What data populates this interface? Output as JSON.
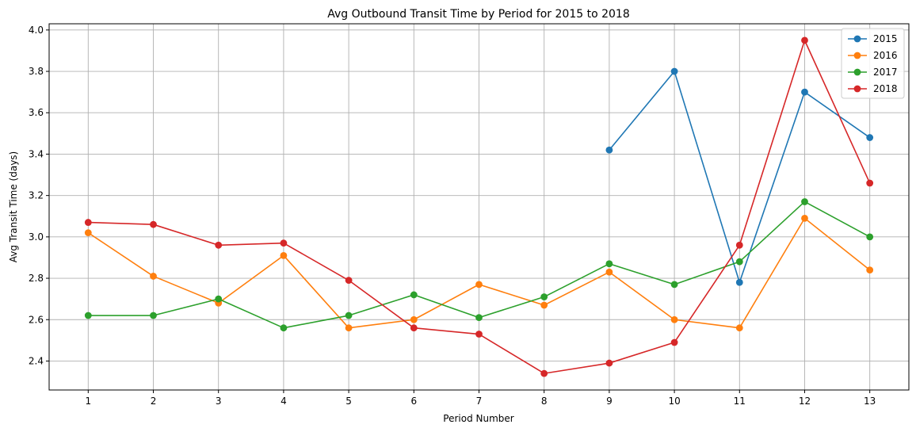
{
  "chart_data": {
    "type": "line",
    "title": "Avg Outbound Transit Time by Period for 2015 to 2018",
    "xlabel": "Period Number",
    "ylabel": "Avg Transit Time (days)",
    "x": [
      1,
      2,
      3,
      4,
      5,
      6,
      7,
      8,
      9,
      10,
      11,
      12,
      13
    ],
    "x_ticks": [
      "1",
      "2",
      "3",
      "4",
      "5",
      "6",
      "7",
      "8",
      "9",
      "10",
      "11",
      "12",
      "13"
    ],
    "y_ticks": [
      "2.4",
      "2.6",
      "2.8",
      "3.0",
      "3.2",
      "3.4",
      "3.6",
      "3.8",
      "4.0"
    ],
    "xlim": [
      0.4,
      13.6
    ],
    "ylim": [
      2.26,
      4.03
    ],
    "grid": true,
    "legend_position": "top-right",
    "series": [
      {
        "name": "2015",
        "color": "#1f77b4",
        "values": [
          null,
          null,
          null,
          null,
          null,
          null,
          null,
          null,
          3.42,
          3.8,
          2.78,
          3.7,
          3.48
        ]
      },
      {
        "name": "2016",
        "color": "#ff7f0e",
        "values": [
          3.02,
          2.81,
          2.68,
          2.91,
          2.56,
          2.6,
          2.77,
          2.67,
          2.83,
          2.6,
          2.56,
          3.09,
          2.84
        ]
      },
      {
        "name": "2017",
        "color": "#2ca02c",
        "values": [
          2.62,
          2.62,
          2.7,
          2.56,
          2.62,
          2.72,
          2.61,
          2.71,
          2.87,
          2.77,
          2.88,
          3.17,
          3.0
        ]
      },
      {
        "name": "2018",
        "color": "#d62728",
        "values": [
          3.07,
          3.06,
          2.96,
          2.97,
          2.79,
          2.56,
          2.53,
          2.34,
          2.39,
          2.49,
          2.96,
          3.95,
          3.26
        ]
      }
    ]
  }
}
